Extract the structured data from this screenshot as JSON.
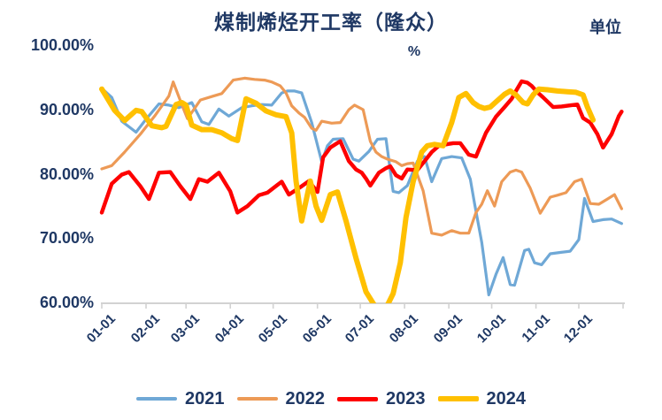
{
  "title": "煤制烯烃开工率（隆众）",
  "unit_label": "单位",
  "axis_unit": "%",
  "colors": {
    "text_navy": "#1f3864",
    "axis_gray": "#d2d2d2",
    "series_2021": "#6fa8d6",
    "series_2022": "#ed9a56",
    "series_2023": "#fe0000",
    "series_2024": "#ffc000"
  },
  "y_axis": {
    "ticks": [
      {
        "label": "100.00%",
        "value": 100
      },
      {
        "label": "90.00%",
        "value": 90
      },
      {
        "label": "80.00%",
        "value": 80
      },
      {
        "label": "70.00%",
        "value": 70
      },
      {
        "label": "60.00%",
        "value": 60
      }
    ]
  },
  "x_axis": {
    "labels": [
      "01-01",
      "02-01",
      "03-01",
      "04-01",
      "05-01",
      "06-01",
      "07-01",
      "08-01",
      "09-01",
      "10-01",
      "11-01",
      "12-01"
    ],
    "tick_days": [
      1,
      32,
      60,
      91,
      121,
      152,
      182,
      213,
      244,
      274,
      305,
      335,
      366
    ]
  },
  "legend": [
    {
      "label": "2021",
      "color": "#6fa8d6",
      "thickness": 4
    },
    {
      "label": "2022",
      "color": "#ed9a56",
      "thickness": 4
    },
    {
      "label": "2023",
      "color": "#fe0000",
      "thickness": 5
    },
    {
      "label": "2024",
      "color": "#ffc000",
      "thickness": 6
    }
  ],
  "chart_data": {
    "type": "line",
    "title": "煤制烯烃开工率（隆众）",
    "ylabel": "%",
    "ylim": [
      60,
      100
    ],
    "x_unit": "day-of-year (weekly operating-rate data, labels are month starts 01-01..12-01)",
    "grid": false,
    "legend_position": "bottom",
    "series": [
      {
        "name": "2021",
        "color": "#6fa8d6",
        "stroke_width": 3.2,
        "points": [
          [
            1,
            93.4
          ],
          [
            8,
            92.0
          ],
          [
            15,
            88.3
          ],
          [
            25,
            86.6
          ],
          [
            32,
            88.6
          ],
          [
            41,
            91.0
          ],
          [
            48,
            90.8
          ],
          [
            55,
            90.4
          ],
          [
            64,
            91.2
          ],
          [
            71,
            88.2
          ],
          [
            76,
            87.8
          ],
          [
            83,
            90.2
          ],
          [
            90,
            89.1
          ],
          [
            99,
            90.4
          ],
          [
            106,
            90.7
          ],
          [
            113,
            90.9
          ],
          [
            120,
            90.8
          ],
          [
            127,
            92.7
          ],
          [
            131,
            93.0
          ],
          [
            136,
            93.0
          ],
          [
            141,
            92.7
          ],
          [
            148,
            88.1
          ],
          [
            155,
            82.0
          ],
          [
            159,
            84.5
          ],
          [
            163,
            85.5
          ],
          [
            170,
            85.6
          ],
          [
            177,
            82.4
          ],
          [
            181,
            82.1
          ],
          [
            188,
            83.6
          ],
          [
            194,
            85.5
          ],
          [
            200,
            85.6
          ],
          [
            205,
            77.4
          ],
          [
            209,
            77.2
          ],
          [
            215,
            78.3
          ],
          [
            222,
            82.1
          ],
          [
            227,
            82.8
          ],
          [
            232,
            78.9
          ],
          [
            239,
            82.5
          ],
          [
            246,
            82.8
          ],
          [
            253,
            82.6
          ],
          [
            259,
            79.3
          ],
          [
            262,
            75.5
          ],
          [
            267,
            69.5
          ],
          [
            272,
            61.3
          ],
          [
            277,
            64.5
          ],
          [
            282,
            67.1
          ],
          [
            287,
            62.9
          ],
          [
            290,
            62.8
          ],
          [
            297,
            68.2
          ],
          [
            300,
            68.4
          ],
          [
            304,
            66.3
          ],
          [
            309,
            66.0
          ],
          [
            315,
            67.7
          ],
          [
            322,
            67.9
          ],
          [
            329,
            68.1
          ],
          [
            335,
            69.9
          ],
          [
            339,
            76.3
          ],
          [
            345,
            72.7
          ],
          [
            352,
            73.0
          ],
          [
            358,
            73.1
          ],
          [
            365,
            72.4
          ]
        ]
      },
      {
        "name": "2022",
        "color": "#ed9a56",
        "stroke_width": 3.2,
        "points": [
          [
            1,
            80.9
          ],
          [
            8,
            81.4
          ],
          [
            17,
            83.5
          ],
          [
            28,
            86.3
          ],
          [
            38,
            89.1
          ],
          [
            48,
            92.2
          ],
          [
            51,
            94.4
          ],
          [
            57,
            90.9
          ],
          [
            61,
            88.7
          ],
          [
            70,
            91.6
          ],
          [
            79,
            92.2
          ],
          [
            85,
            92.6
          ],
          [
            93,
            94.7
          ],
          [
            101,
            95.0
          ],
          [
            108,
            94.8
          ],
          [
            115,
            94.7
          ],
          [
            120,
            94.4
          ],
          [
            126,
            93.8
          ],
          [
            130,
            92.7
          ],
          [
            134,
            90.7
          ],
          [
            139,
            89.6
          ],
          [
            143,
            88.9
          ],
          [
            148,
            87.2
          ],
          [
            151,
            86.9
          ],
          [
            155,
            88.3
          ],
          [
            162,
            88.0
          ],
          [
            168,
            88.1
          ],
          [
            174,
            90.1
          ],
          [
            178,
            90.8
          ],
          [
            184,
            90.1
          ],
          [
            189,
            85.2
          ],
          [
            193,
            83.5
          ],
          [
            197,
            82.8
          ],
          [
            201,
            82.4
          ],
          [
            207,
            82.0
          ],
          [
            211,
            81.4
          ],
          [
            215,
            81.7
          ],
          [
            219,
            81.8
          ],
          [
            226,
            77.5
          ],
          [
            232,
            70.9
          ],
          [
            239,
            70.6
          ],
          [
            246,
            71.3
          ],
          [
            252,
            70.9
          ],
          [
            258,
            70.9
          ],
          [
            263,
            74.1
          ],
          [
            267,
            75.4
          ],
          [
            271,
            77.5
          ],
          [
            276,
            75.1
          ],
          [
            281,
            78.9
          ],
          [
            287,
            80.4
          ],
          [
            291,
            80.7
          ],
          [
            295,
            80.4
          ],
          [
            301,
            77.9
          ],
          [
            308,
            74.0
          ],
          [
            315,
            76.5
          ],
          [
            320,
            76.8
          ],
          [
            326,
            77.2
          ],
          [
            332,
            78.9
          ],
          [
            337,
            79.3
          ],
          [
            343,
            75.5
          ],
          [
            349,
            75.4
          ],
          [
            355,
            76.2
          ],
          [
            360,
            76.9
          ],
          [
            365,
            74.7
          ]
        ]
      },
      {
        "name": "2023",
        "color": "#fe0000",
        "stroke_width": 4.4,
        "points": [
          [
            1,
            74.1
          ],
          [
            8,
            78.6
          ],
          [
            15,
            80.0
          ],
          [
            20,
            80.4
          ],
          [
            28,
            78.2
          ],
          [
            34,
            76.2
          ],
          [
            41,
            80.3
          ],
          [
            49,
            80.4
          ],
          [
            56,
            78.2
          ],
          [
            63,
            76.2
          ],
          [
            69,
            79.3
          ],
          [
            75,
            78.9
          ],
          [
            83,
            80.3
          ],
          [
            91,
            77.4
          ],
          [
            96,
            74.1
          ],
          [
            103,
            75.1
          ],
          [
            111,
            76.8
          ],
          [
            117,
            77.2
          ],
          [
            124,
            78.4
          ],
          [
            127,
            78.9
          ],
          [
            132,
            76.9
          ],
          [
            141,
            78.2
          ],
          [
            146,
            79.0
          ],
          [
            152,
            77.3
          ],
          [
            156,
            82.7
          ],
          [
            161,
            84.2
          ],
          [
            168,
            85.2
          ],
          [
            174,
            82.1
          ],
          [
            179,
            80.8
          ],
          [
            183,
            80.3
          ],
          [
            186,
            79.4
          ],
          [
            189,
            78.3
          ],
          [
            195,
            80.3
          ],
          [
            200,
            81.0
          ],
          [
            203,
            81.3
          ],
          [
            207,
            79.9
          ],
          [
            211,
            79.4
          ],
          [
            215,
            80.8
          ],
          [
            222,
            80.7
          ],
          [
            227,
            82.1
          ],
          [
            232,
            83.5
          ],
          [
            237,
            84.5
          ],
          [
            242,
            84.7
          ],
          [
            247,
            84.9
          ],
          [
            252,
            84.9
          ],
          [
            258,
            83.1
          ],
          [
            263,
            82.8
          ],
          [
            270,
            86.5
          ],
          [
            277,
            89.0
          ],
          [
            283,
            90.5
          ],
          [
            288,
            91.8
          ],
          [
            291,
            93.0
          ],
          [
            295,
            94.5
          ],
          [
            299,
            94.3
          ],
          [
            302,
            93.8
          ],
          [
            306,
            92.8
          ],
          [
            310,
            92.0
          ],
          [
            317,
            90.5
          ],
          [
            323,
            90.6
          ],
          [
            330,
            90.8
          ],
          [
            334,
            90.9
          ],
          [
            338,
            88.8
          ],
          [
            343,
            88.1
          ],
          [
            348,
            86.3
          ],
          [
            352,
            84.2
          ],
          [
            358,
            86.3
          ],
          [
            363,
            89.1
          ],
          [
            365,
            89.8
          ]
        ]
      },
      {
        "name": "2024",
        "color": "#ffc000",
        "stroke_width": 6,
        "points": [
          [
            1,
            93.3
          ],
          [
            10,
            90.0
          ],
          [
            17,
            88.4
          ],
          [
            25,
            90.0
          ],
          [
            29,
            89.8
          ],
          [
            36,
            87.6
          ],
          [
            43,
            87.3
          ],
          [
            46,
            87.5
          ],
          [
            53,
            90.9
          ],
          [
            57,
            91.2
          ],
          [
            60,
            90.8
          ],
          [
            64,
            87.7
          ],
          [
            71,
            87.0
          ],
          [
            78,
            87.0
          ],
          [
            85,
            86.5
          ],
          [
            92,
            85.6
          ],
          [
            96,
            85.3
          ],
          [
            102,
            91.8
          ],
          [
            109,
            91.1
          ],
          [
            116,
            89.9
          ],
          [
            123,
            89.3
          ],
          [
            130,
            89.0
          ],
          [
            134,
            86.5
          ],
          [
            137,
            79.0
          ],
          [
            141,
            72.8
          ],
          [
            147,
            79.0
          ],
          [
            151,
            75.1
          ],
          [
            155,
            72.9
          ],
          [
            161,
            76.9
          ],
          [
            166,
            77.3
          ],
          [
            172,
            72.8
          ],
          [
            179,
            67.0
          ],
          [
            186,
            61.8
          ],
          [
            193,
            59.3
          ],
          [
            199,
            58.8
          ],
          [
            205,
            61.5
          ],
          [
            210,
            66.3
          ],
          [
            214,
            73.3
          ],
          [
            219,
            78.9
          ],
          [
            225,
            83.5
          ],
          [
            229,
            84.5
          ],
          [
            234,
            84.7
          ],
          [
            240,
            84.5
          ],
          [
            246,
            88.1
          ],
          [
            251,
            92.0
          ],
          [
            256,
            92.6
          ],
          [
            261,
            91.2
          ],
          [
            265,
            90.6
          ],
          [
            269,
            90.3
          ],
          [
            273,
            90.5
          ],
          [
            278,
            91.5
          ],
          [
            283,
            92.5
          ],
          [
            287,
            93.0
          ],
          [
            291,
            92.4
          ],
          [
            296,
            91.2
          ],
          [
            299,
            91.0
          ],
          [
            303,
            92.4
          ],
          [
            307,
            93.3
          ],
          [
            313,
            93.2
          ],
          [
            320,
            93.0
          ],
          [
            327,
            92.9
          ],
          [
            333,
            92.8
          ],
          [
            338,
            92.4
          ],
          [
            341,
            90.5
          ],
          [
            345,
            88.5
          ]
        ]
      }
    ]
  }
}
